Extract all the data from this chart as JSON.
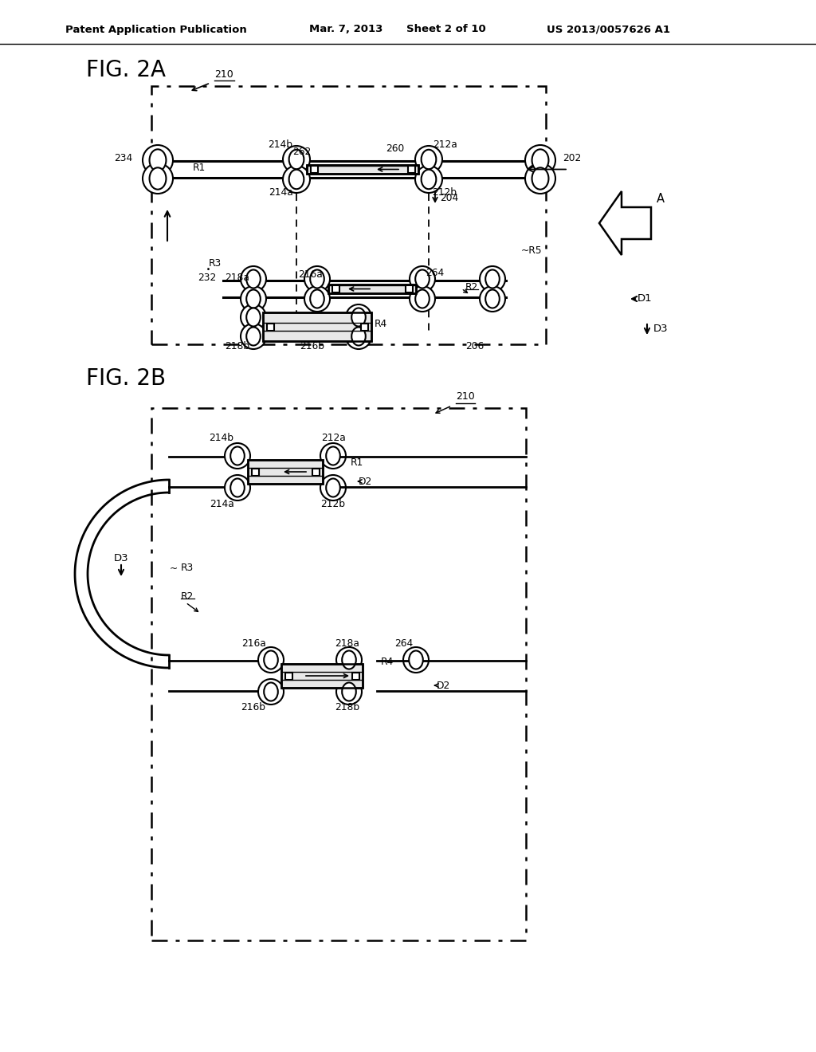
{
  "bg_color": "#ffffff",
  "header_left": "Patent Application Publication",
  "header_date": "Mar. 7, 2013",
  "header_sheet": "Sheet 2 of 10",
  "header_patent": "US 2013/0057626 A1",
  "fig2a_label": "FIG. 2A",
  "fig2b_label": "FIG. 2B",
  "label_210a": "210",
  "label_210b": "210",
  "label_202": "202",
  "label_234": "234",
  "label_214b": "214b",
  "label_214a": "214a",
  "label_212a": "212a",
  "label_212b": "212b",
  "label_262": "262",
  "label_260": "260",
  "label_204": "204",
  "label_R1": "R1",
  "label_R2": "R2",
  "label_R3": "R3",
  "label_R4": "R4",
  "label_R5": "~R5",
  "label_232": "232",
  "label_218a": "218a",
  "label_218b": "218b",
  "label_216a": "216a",
  "label_216b": "216b",
  "label_264": "264",
  "label_206": "206",
  "label_A": "A",
  "label_D1": "D1",
  "label_D2": "D2",
  "label_D3": "D3"
}
